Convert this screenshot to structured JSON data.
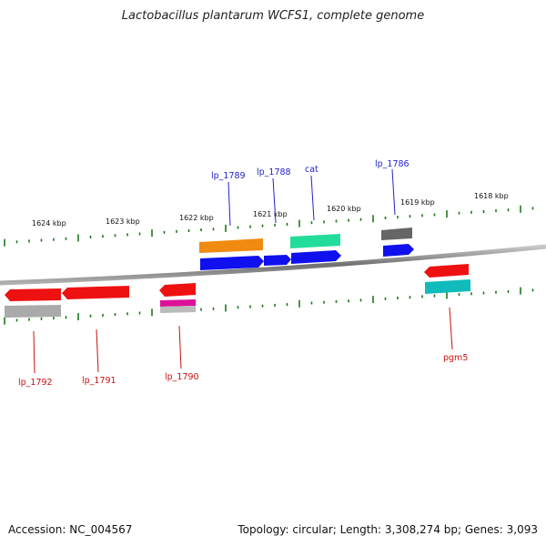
{
  "title": "Lactobacillus plantarum WCFS1, complete genome",
  "colors": {
    "backbone": "#808080",
    "tick": "#1a7a1a",
    "label_forward": "#2222cc",
    "label_reverse": "#cc1111",
    "red": "#ee1111",
    "blue": "#1010ee",
    "orange": "#f08a10",
    "green": "#22dd99",
    "darkgray": "#666666",
    "lightgray": "#aaaaaa",
    "magenta": "#dd1199",
    "cyan": "#11bbbb"
  },
  "kbp_labels": [
    "1624 kbp",
    "1623 kbp",
    "1622 kbp",
    "1621 kbp",
    "1620 kbp",
    "1619 kbp",
    "1618 kbp"
  ],
  "gene_labels": {
    "forward": [
      "lp_1789",
      "lp_1788",
      "cat",
      "lp_1786"
    ],
    "reverse": [
      "lp_1792",
      "lp_1791",
      "lp_1790",
      "pgm5"
    ]
  },
  "footer": {
    "accession": "Accession: NC_004567",
    "topology": "Topology: circular; Length: 3,308,274 bp; Genes: 3,093"
  }
}
